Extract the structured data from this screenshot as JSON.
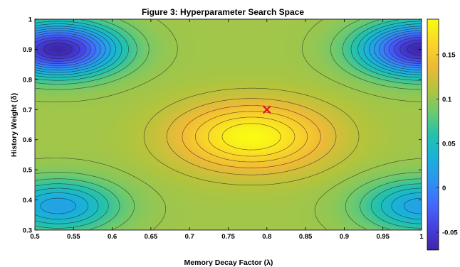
{
  "chart_data": {
    "type": "heatmap",
    "title": "Figure 3: Hyperparameter Search Space",
    "xlabel": "Memory Decay Factor (λ)",
    "ylabel": "History Weight (δ)",
    "xlim": [
      0.5,
      1.0
    ],
    "ylim": [
      0.3,
      1.0
    ],
    "x_ticks": [
      "0.5",
      "0.55",
      "0.6",
      "0.65",
      "0.7",
      "0.75",
      "0.8",
      "0.85",
      "0.9",
      "0.95",
      "1"
    ],
    "y_ticks": [
      "0.3",
      "0.4",
      "0.5",
      "0.6",
      "0.7",
      "0.8",
      "0.9",
      "1"
    ],
    "color_range": [
      -0.07,
      0.19
    ],
    "colorbar_ticks": [
      "-0.05",
      "0",
      "0.05",
      "0.1",
      "0.15"
    ],
    "colormap": "parula",
    "contour_lines": true,
    "peak": {
      "x": 0.78,
      "y": 0.61,
      "value": 0.19
    },
    "minima": [
      {
        "x": 0.53,
        "y": 0.9,
        "value": -0.07
      },
      {
        "x": 1.0,
        "y": 0.9,
        "value": -0.07
      },
      {
        "x": 0.53,
        "y": 0.38,
        "value": 0.02
      },
      {
        "x": 1.0,
        "y": 0.38,
        "value": 0.02
      }
    ],
    "marker": {
      "x": 0.8,
      "y": 0.7,
      "symbol": "x",
      "color": "#e8131a"
    }
  }
}
